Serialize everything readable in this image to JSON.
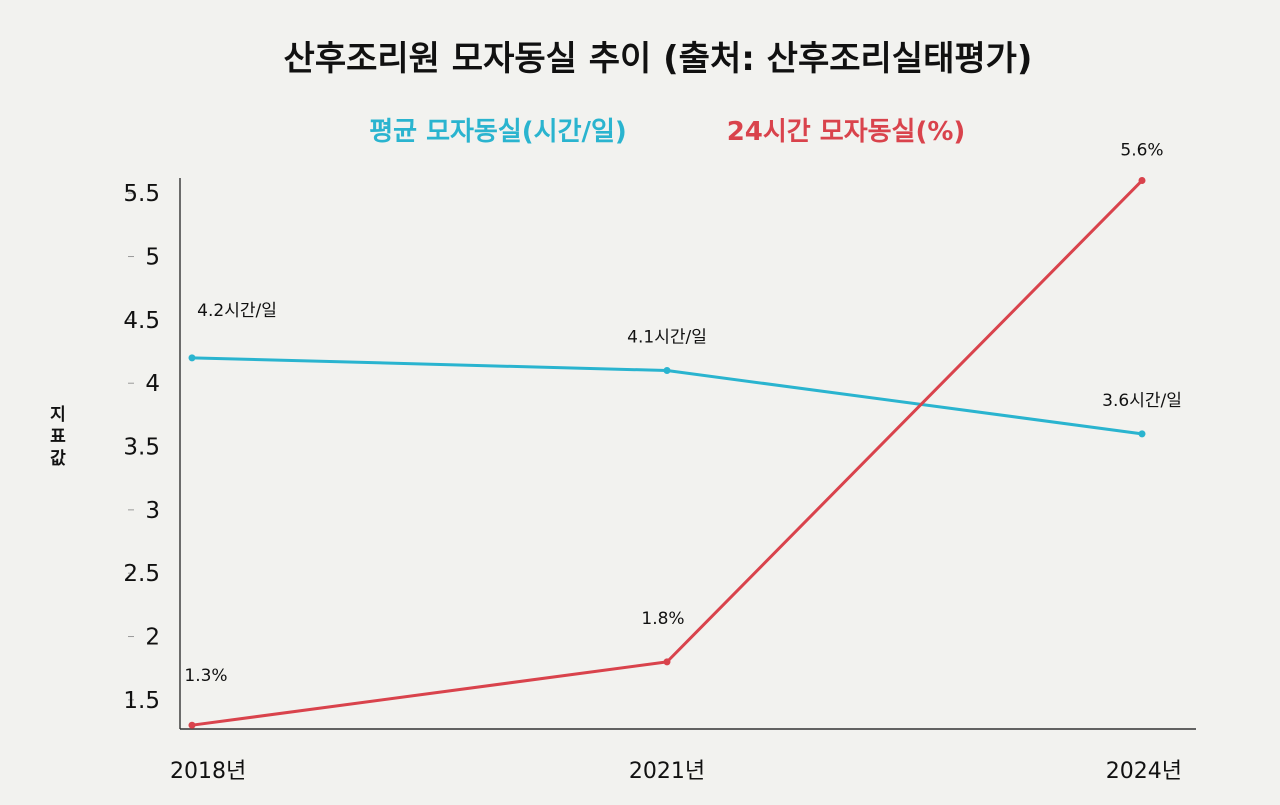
{
  "title": "산후조리원 모자동실 추이 (출처: 산후조리실태평가)",
  "colors": {
    "background": "#f2f2ef",
    "series_avg": "#2ab4cf",
    "series_24h": "#d9434c",
    "axis": "#333333"
  },
  "chart_data": {
    "type": "line",
    "title": "산후조리원 모자동실 추이 (출처: 산후조리실태평가)",
    "x": [
      "2018년",
      "2021년",
      "2024년"
    ],
    "xlabel": "",
    "ylabel": "지표값",
    "ylim": [
      1.27,
      5.62
    ],
    "yticks": [
      1.5,
      2,
      2.5,
      3,
      3.5,
      4,
      4.5,
      5,
      5.5
    ],
    "ytick_labels": [
      "1.5",
      "2",
      "2.5",
      "3",
      "3.5",
      "4",
      "4.5",
      "5",
      "5.5"
    ],
    "grid": false,
    "legend": "top-center",
    "series": [
      {
        "name": "평균 모자동실(시간/일)",
        "values": [
          4.2,
          4.1,
          3.6
        ],
        "labels": [
          "4.2시간/일",
          "4.1시간/일",
          "3.6시간/일"
        ],
        "color": "#2ab4cf"
      },
      {
        "name": "24시간 모자동실(%)",
        "values": [
          1.3,
          1.8,
          5.6
        ],
        "labels": [
          "1.3%",
          "1.8%",
          "5.6%"
        ],
        "color": "#d9434c"
      }
    ]
  }
}
